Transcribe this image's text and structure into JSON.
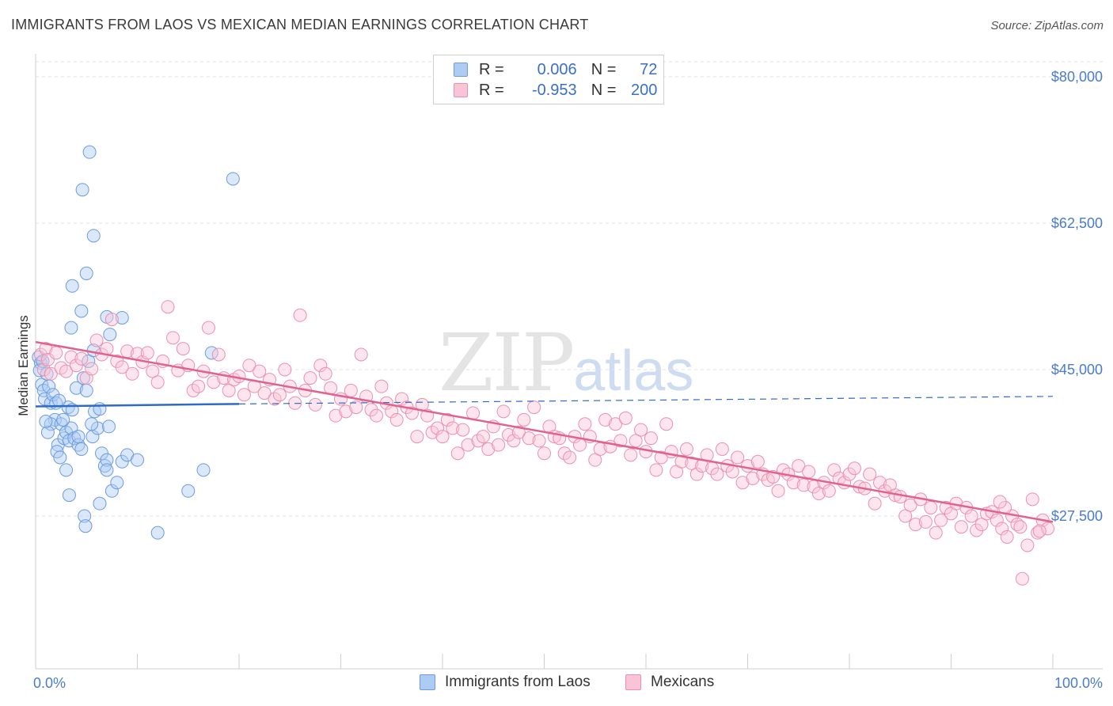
{
  "title": "IMMIGRANTS FROM LAOS VS MEXICAN MEDIAN EARNINGS CORRELATION CHART",
  "source": "Source: ZipAtlas.com",
  "watermark": {
    "zip": "ZIP",
    "atlas": "atlas"
  },
  "legend": {
    "rows": [
      {
        "r_label": "R =",
        "r_value": "0.006",
        "n_label": "N =",
        "n_value": "72",
        "color": "#aecbf4",
        "border": "#6b9be0"
      },
      {
        "r_label": "R =",
        "r_value": "-0.953",
        "n_label": "N =",
        "n_value": "200",
        "color": "#f9c5d6",
        "border": "#ec8fb0"
      }
    ]
  },
  "bottom_legend": [
    {
      "label": "Immigrants from Laos",
      "color": "#aecbf4",
      "border": "#6b9be0"
    },
    {
      "label": "Mexicans",
      "color": "#f9c5d6",
      "border": "#ec8fb0"
    }
  ],
  "chart_data": {
    "type": "scatter",
    "title": "IMMIGRANTS FROM LAOS VS MEXICAN MEDIAN EARNINGS CORRELATION CHART",
    "ylabel": "Median Earnings",
    "xlabel": "",
    "x_tick_labels": [
      "0.0%",
      "100.0%"
    ],
    "y_tick_labels": [
      "$27,500",
      "$45,000",
      "$62,500",
      "$80,000"
    ],
    "y_ticks": [
      27500,
      45000,
      62500,
      80000
    ],
    "xlim": [
      0,
      100
    ],
    "ylim": [
      12500,
      82500
    ],
    "grid": true,
    "colors": {
      "laos": "#6b9be0",
      "mexicans": "#ec8fb0",
      "laos_line": "#2f6ac6",
      "mex_line": "#e2628f"
    },
    "series": [
      {
        "name": "Immigrants from Laos",
        "r": 0.006,
        "n": 72,
        "trend": {
          "x": [
            0,
            20
          ],
          "y": [
            40600,
            40900
          ],
          "dashed_to": [
            100,
            41800
          ]
        },
        "points": [
          [
            0.3,
            46.5
          ],
          [
            0.5,
            45.8
          ],
          [
            0.4,
            44.9
          ],
          [
            0.7,
            46.0
          ],
          [
            0.6,
            43.2
          ],
          [
            0.8,
            42.5
          ],
          [
            0.9,
            41.5
          ],
          [
            1.1,
            44.5
          ],
          [
            1.3,
            43.0
          ],
          [
            1.5,
            41.0
          ],
          [
            1.7,
            42.0
          ],
          [
            1.9,
            39.0
          ],
          [
            1.5,
            38.5
          ],
          [
            1.2,
            37.5
          ],
          [
            2.2,
            36.0
          ],
          [
            2.5,
            38.5
          ],
          [
            2.1,
            35.2
          ],
          [
            2.8,
            36.8
          ],
          [
            3.0,
            37.5
          ],
          [
            2.4,
            34.5
          ],
          [
            3.3,
            36.5
          ],
          [
            3.5,
            38.0
          ],
          [
            3.0,
            33.0
          ],
          [
            3.8,
            36.8
          ],
          [
            4.2,
            36.0
          ],
          [
            4.5,
            35.5
          ],
          [
            4.0,
            42.8
          ],
          [
            4.7,
            44.0
          ],
          [
            5.0,
            42.5
          ],
          [
            3.2,
            40.5
          ],
          [
            3.6,
            40.2
          ],
          [
            2.7,
            39.0
          ],
          [
            5.2,
            46.0
          ],
          [
            5.6,
            37.0
          ],
          [
            6.1,
            38.0
          ],
          [
            6.5,
            35.0
          ],
          [
            6.8,
            33.5
          ],
          [
            7.0,
            34.2
          ],
          [
            7.5,
            30.5
          ],
          [
            8.0,
            31.5
          ],
          [
            8.5,
            34.0
          ],
          [
            9.0,
            34.8
          ],
          [
            10.0,
            34.2
          ],
          [
            7.2,
            38.2
          ],
          [
            5.5,
            38.5
          ],
          [
            5.8,
            40.0
          ],
          [
            6.3,
            40.3
          ],
          [
            7.0,
            33.0
          ],
          [
            4.8,
            27.5
          ],
          [
            3.3,
            30.0
          ],
          [
            4.9,
            26.3
          ],
          [
            6.3,
            29.0
          ],
          [
            4.5,
            52.0
          ],
          [
            5.0,
            56.5
          ],
          [
            5.7,
            61.0
          ],
          [
            4.6,
            66.5
          ],
          [
            5.3,
            71.0
          ],
          [
            3.6,
            55.0
          ],
          [
            3.5,
            50.0
          ],
          [
            7.0,
            51.3
          ],
          [
            8.5,
            51.2
          ],
          [
            7.3,
            49.2
          ],
          [
            5.7,
            47.3
          ],
          [
            12.0,
            25.5
          ],
          [
            15.0,
            30.5
          ],
          [
            16.5,
            33.0
          ],
          [
            17.3,
            47.0
          ],
          [
            19.4,
            67.8
          ],
          [
            2.0,
            41.0
          ],
          [
            1.0,
            38.8
          ],
          [
            2.3,
            41.3
          ],
          [
            4.2,
            37.0
          ]
        ]
      },
      {
        "name": "Mexicans",
        "r": -0.953,
        "n": 200,
        "trend": {
          "x": [
            0,
            100
          ],
          "y": [
            48300,
            26800
          ]
        },
        "points": [
          [
            0.5,
            46.8
          ],
          [
            0.8,
            45.0
          ],
          [
            1.0,
            47.5
          ],
          [
            1.2,
            46.2
          ],
          [
            1.5,
            44.5
          ],
          [
            2.0,
            47.0
          ],
          [
            2.5,
            45.2
          ],
          [
            3.0,
            44.8
          ],
          [
            3.5,
            46.5
          ],
          [
            4.0,
            45.5
          ],
          [
            4.5,
            46.3
          ],
          [
            5.0,
            44.0
          ],
          [
            5.5,
            45.1
          ],
          [
            6.0,
            48.5
          ],
          [
            6.5,
            46.8
          ],
          [
            7.0,
            47.5
          ],
          [
            7.5,
            51.0
          ],
          [
            8.0,
            46.0
          ],
          [
            8.5,
            45.3
          ],
          [
            9.0,
            47.2
          ],
          [
            9.5,
            44.5
          ],
          [
            10.0,
            46.9
          ],
          [
            10.5,
            45.9
          ],
          [
            11.0,
            47.0
          ],
          [
            11.5,
            44.8
          ],
          [
            12.0,
            43.5
          ],
          [
            12.5,
            46.0
          ],
          [
            13.0,
            52.5
          ],
          [
            13.5,
            48.8
          ],
          [
            14.0,
            44.9
          ],
          [
            14.5,
            47.5
          ],
          [
            15.0,
            45.5
          ],
          [
            15.5,
            42.5
          ],
          [
            16.0,
            43.0
          ],
          [
            16.5,
            44.8
          ],
          [
            17.0,
            50.0
          ],
          [
            17.5,
            43.5
          ],
          [
            18.0,
            46.8
          ],
          [
            18.5,
            44.0
          ],
          [
            19.0,
            42.5
          ],
          [
            19.5,
            43.8
          ],
          [
            20.0,
            44.2
          ],
          [
            20.5,
            42.0
          ],
          [
            21.0,
            45.5
          ],
          [
            21.5,
            43.0
          ],
          [
            22.0,
            44.8
          ],
          [
            22.5,
            42.2
          ],
          [
            23.0,
            43.8
          ],
          [
            23.5,
            41.5
          ],
          [
            24.0,
            42.0
          ],
          [
            24.5,
            45.0
          ],
          [
            25.0,
            43.0
          ],
          [
            25.5,
            41.0
          ],
          [
            26.0,
            51.5
          ],
          [
            26.5,
            42.5
          ],
          [
            27.0,
            44.0
          ],
          [
            27.5,
            40.8
          ],
          [
            28.0,
            45.5
          ],
          [
            28.5,
            44.5
          ],
          [
            29.0,
            42.8
          ],
          [
            29.5,
            39.5
          ],
          [
            30.0,
            41.5
          ],
          [
            30.5,
            40.0
          ],
          [
            31.0,
            42.5
          ],
          [
            31.5,
            40.5
          ],
          [
            32.0,
            46.8
          ],
          [
            32.5,
            41.8
          ],
          [
            33.0,
            40.2
          ],
          [
            33.5,
            39.5
          ],
          [
            34.0,
            43.0
          ],
          [
            34.5,
            41.0
          ],
          [
            35.0,
            40.0
          ],
          [
            35.5,
            39.0
          ],
          [
            36.0,
            41.5
          ],
          [
            36.5,
            40.5
          ],
          [
            37.0,
            39.8
          ],
          [
            37.5,
            37.0
          ],
          [
            38.0,
            40.8
          ],
          [
            38.5,
            39.5
          ],
          [
            39.0,
            37.5
          ],
          [
            39.5,
            38.0
          ],
          [
            40.0,
            37.0
          ],
          [
            40.5,
            39.0
          ],
          [
            41.0,
            38.0
          ],
          [
            41.5,
            35.0
          ],
          [
            42.0,
            37.8
          ],
          [
            42.5,
            36.0
          ],
          [
            43.0,
            39.8
          ],
          [
            43.5,
            36.5
          ],
          [
            44.0,
            37.0
          ],
          [
            44.5,
            35.5
          ],
          [
            45.0,
            38.2
          ],
          [
            45.5,
            36.0
          ],
          [
            46.0,
            40.0
          ],
          [
            46.5,
            37.2
          ],
          [
            47.0,
            36.5
          ],
          [
            47.5,
            37.5
          ],
          [
            48.0,
            39.0
          ],
          [
            48.5,
            36.8
          ],
          [
            49.0,
            40.5
          ],
          [
            49.5,
            36.5
          ],
          [
            50.0,
            35.0
          ],
          [
            50.5,
            38.2
          ],
          [
            51.0,
            37.0
          ],
          [
            51.5,
            36.8
          ],
          [
            52.0,
            35.0
          ],
          [
            52.5,
            34.5
          ],
          [
            53.0,
            37.0
          ],
          [
            53.5,
            36.0
          ],
          [
            54.0,
            38.5
          ],
          [
            54.5,
            37.0
          ],
          [
            55.0,
            34.2
          ],
          [
            55.5,
            35.5
          ],
          [
            56.0,
            39.0
          ],
          [
            56.5,
            35.8
          ],
          [
            57.0,
            38.5
          ],
          [
            57.5,
            36.5
          ],
          [
            58.0,
            39.2
          ],
          [
            58.5,
            34.8
          ],
          [
            59.0,
            36.5
          ],
          [
            59.5,
            37.8
          ],
          [
            60.0,
            35.2
          ],
          [
            60.5,
            36.8
          ],
          [
            61.0,
            33.0
          ],
          [
            61.5,
            34.5
          ],
          [
            62.0,
            38.5
          ],
          [
            62.5,
            35.2
          ],
          [
            63.0,
            32.8
          ],
          [
            63.5,
            34.0
          ],
          [
            64.0,
            35.5
          ],
          [
            64.5,
            33.8
          ],
          [
            65.0,
            32.5
          ],
          [
            65.5,
            33.5
          ],
          [
            66.0,
            34.8
          ],
          [
            66.5,
            33.2
          ],
          [
            67.0,
            32.5
          ],
          [
            67.5,
            35.5
          ],
          [
            68.0,
            33.5
          ],
          [
            68.5,
            32.8
          ],
          [
            69.0,
            34.5
          ],
          [
            69.5,
            31.5
          ],
          [
            70.0,
            33.5
          ],
          [
            70.5,
            32.0
          ],
          [
            71.0,
            34.0
          ],
          [
            71.5,
            32.5
          ],
          [
            72.0,
            31.8
          ],
          [
            72.5,
            32.2
          ],
          [
            73.0,
            30.5
          ],
          [
            73.5,
            33.0
          ],
          [
            74.0,
            32.5
          ],
          [
            74.5,
            31.5
          ],
          [
            75.0,
            33.5
          ],
          [
            75.5,
            31.2
          ],
          [
            76.0,
            32.8
          ],
          [
            76.5,
            31.0
          ],
          [
            77.0,
            30.2
          ],
          [
            77.5,
            31.5
          ],
          [
            78.0,
            30.5
          ],
          [
            78.5,
            33.0
          ],
          [
            79.0,
            32.0
          ],
          [
            79.5,
            31.5
          ],
          [
            80.0,
            32.5
          ],
          [
            80.5,
            33.2
          ],
          [
            81.0,
            31.0
          ],
          [
            81.5,
            30.8
          ],
          [
            82.0,
            32.5
          ],
          [
            82.5,
            29.0
          ],
          [
            83.0,
            31.5
          ],
          [
            83.5,
            30.5
          ],
          [
            84.0,
            31.2
          ],
          [
            84.5,
            30.0
          ],
          [
            85.0,
            29.8
          ],
          [
            85.5,
            27.5
          ],
          [
            86.0,
            28.8
          ],
          [
            86.5,
            26.5
          ],
          [
            87.0,
            29.5
          ],
          [
            87.5,
            26.8
          ],
          [
            88.0,
            28.5
          ],
          [
            88.5,
            25.5
          ],
          [
            89.0,
            27.0
          ],
          [
            89.5,
            28.5
          ],
          [
            90.0,
            27.8
          ],
          [
            90.5,
            29.0
          ],
          [
            91.0,
            26.2
          ],
          [
            91.5,
            28.5
          ],
          [
            92.0,
            27.5
          ],
          [
            92.5,
            25.8
          ],
          [
            93.0,
            26.5
          ],
          [
            93.5,
            27.8
          ],
          [
            94.0,
            28.0
          ],
          [
            94.5,
            27.0
          ],
          [
            95.0,
            26.0
          ],
          [
            95.5,
            25.0
          ],
          [
            96.0,
            27.5
          ],
          [
            96.5,
            26.5
          ],
          [
            97.0,
            20.0
          ],
          [
            97.5,
            24.0
          ],
          [
            98.0,
            29.5
          ],
          [
            98.5,
            25.5
          ],
          [
            99.0,
            27.0
          ],
          [
            99.5,
            26.0
          ],
          [
            98.7,
            25.7
          ],
          [
            96.8,
            26.2
          ],
          [
            95.3,
            28.5
          ],
          [
            94.8,
            29.2
          ]
        ]
      }
    ]
  }
}
